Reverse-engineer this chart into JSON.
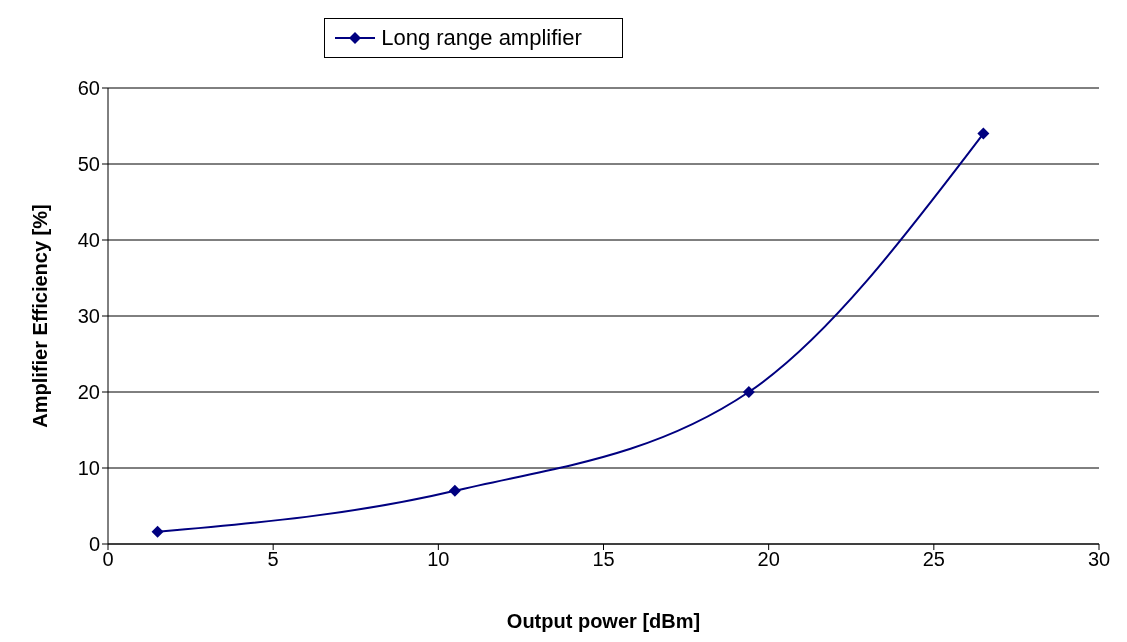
{
  "chart_data": {
    "type": "line",
    "xlabel": "Output power [dBm]",
    "ylabel": "Amplifier Efficiency [%]",
    "x": [
      1.5,
      10.5,
      19.4,
      26.5
    ],
    "series": [
      {
        "name": "Long range amplifier",
        "color": "#000080",
        "values": [
          1.6,
          7,
          20,
          54
        ]
      }
    ],
    "xlim": [
      0,
      30
    ],
    "xticks": [
      0,
      5,
      10,
      15,
      20,
      25,
      30
    ],
    "ylim": [
      0,
      60
    ],
    "yticks": [
      0,
      10,
      20,
      30,
      40,
      50,
      60
    ],
    "grid": "y",
    "legend": "top",
    "marker": "diamond",
    "line_style": "solid"
  }
}
